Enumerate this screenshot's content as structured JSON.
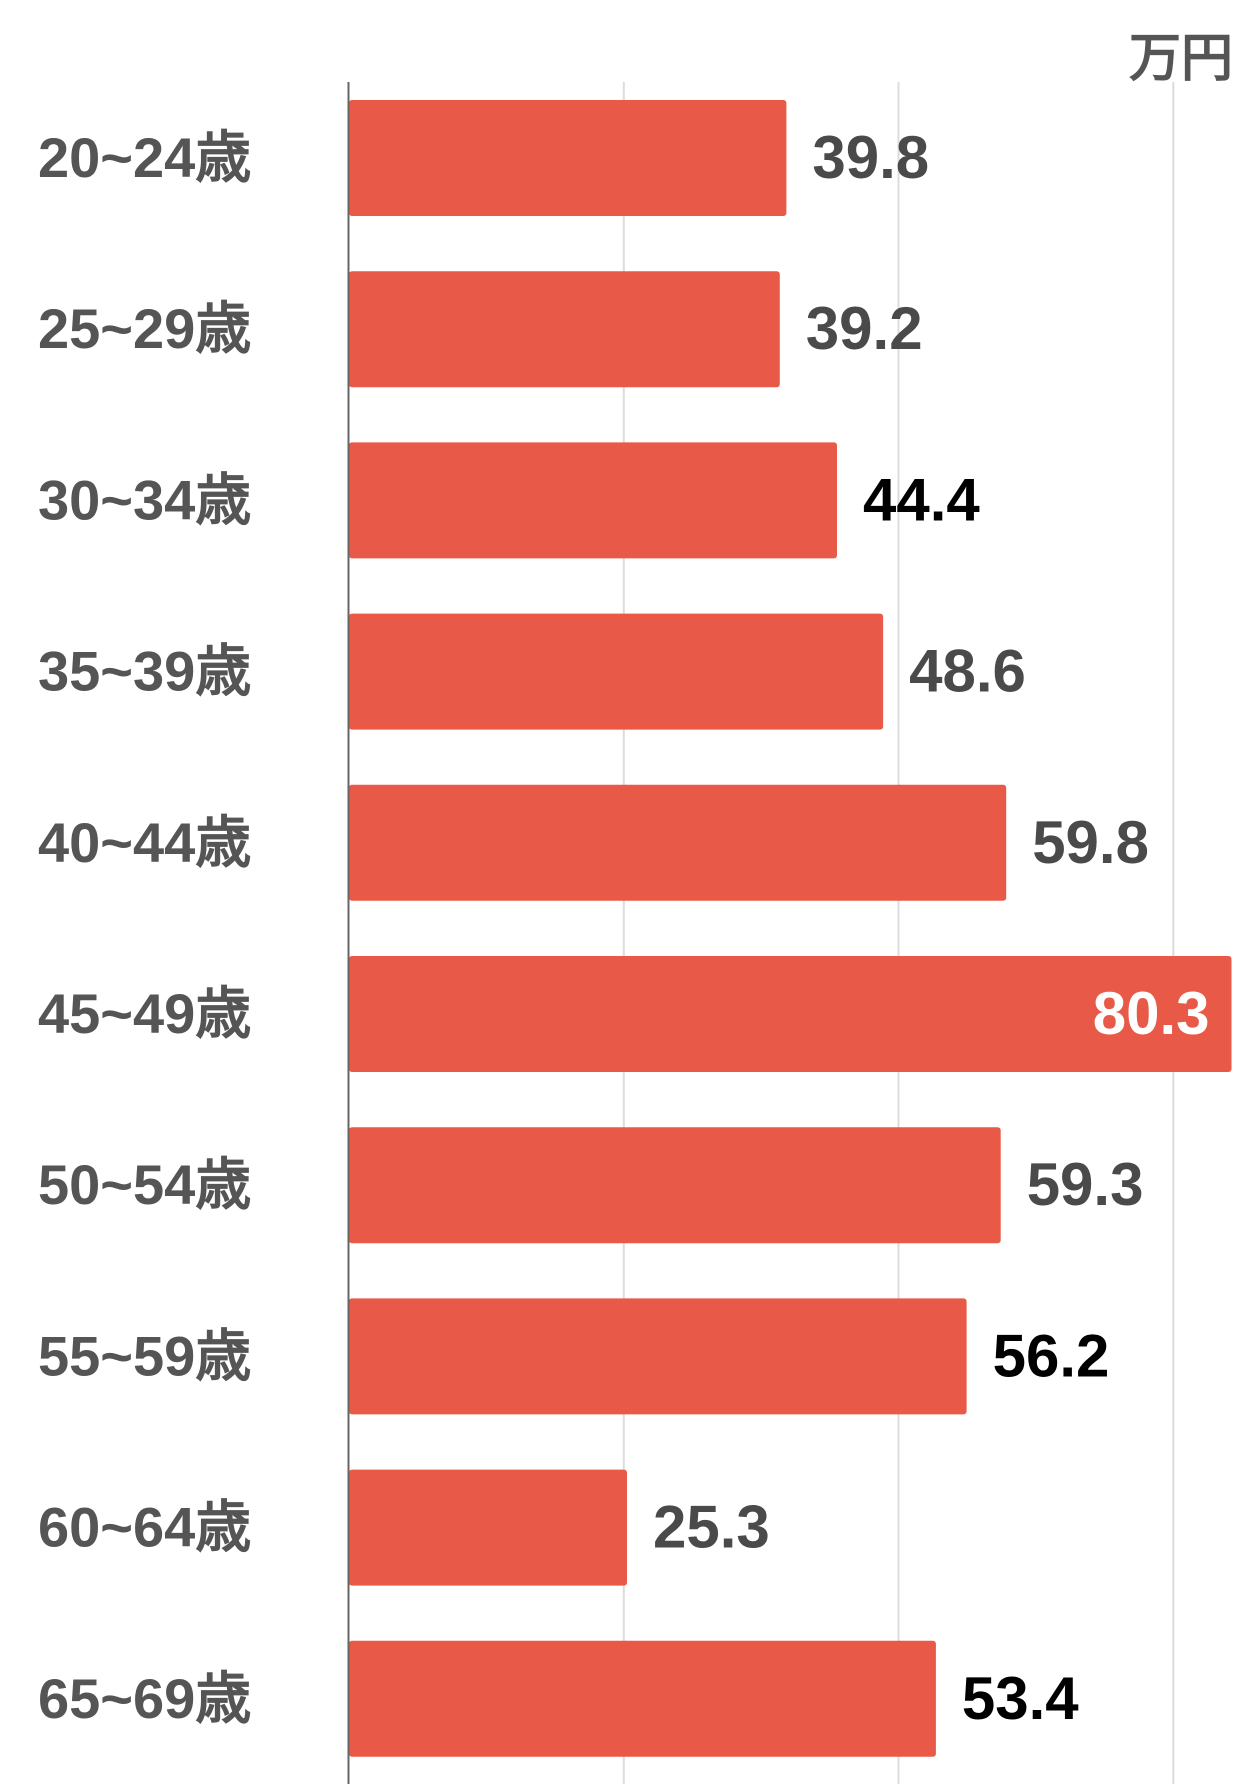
{
  "chart_data": {
    "type": "bar",
    "orientation": "horizontal",
    "unit_label": "万円",
    "categories": [
      "20~24歳",
      "25~29歳",
      "30~34歳",
      "35~39歳",
      "40~44歳",
      "45~49歳",
      "50~54歳",
      "55~59歳",
      "60~64歳",
      "65~69歳"
    ],
    "values": [
      39.8,
      39.2,
      44.4,
      48.6,
      59.8,
      80.3,
      59.3,
      56.2,
      25.3,
      53.4
    ],
    "value_labels": [
      "39.8",
      "39.2",
      "44.4",
      "48.6",
      "59.8",
      "80.3",
      "59.3",
      "56.2",
      "25.3",
      "53.4"
    ],
    "label_colors": [
      "#4a4a4a",
      "#4a4a4a",
      "#000000",
      "#4a4a4a",
      "#4a4a4a",
      "#ffffff",
      "#4a4a4a",
      "#000000",
      "#4a4a4a",
      "#000000"
    ],
    "label_inside": [
      false,
      false,
      false,
      false,
      false,
      true,
      false,
      false,
      false,
      false
    ],
    "xlim": [
      0,
      80
    ],
    "gridlines": [
      25,
      50,
      75
    ],
    "grid": true,
    "bar_color": "#e85a47",
    "axis_label_color": "#555555"
  }
}
